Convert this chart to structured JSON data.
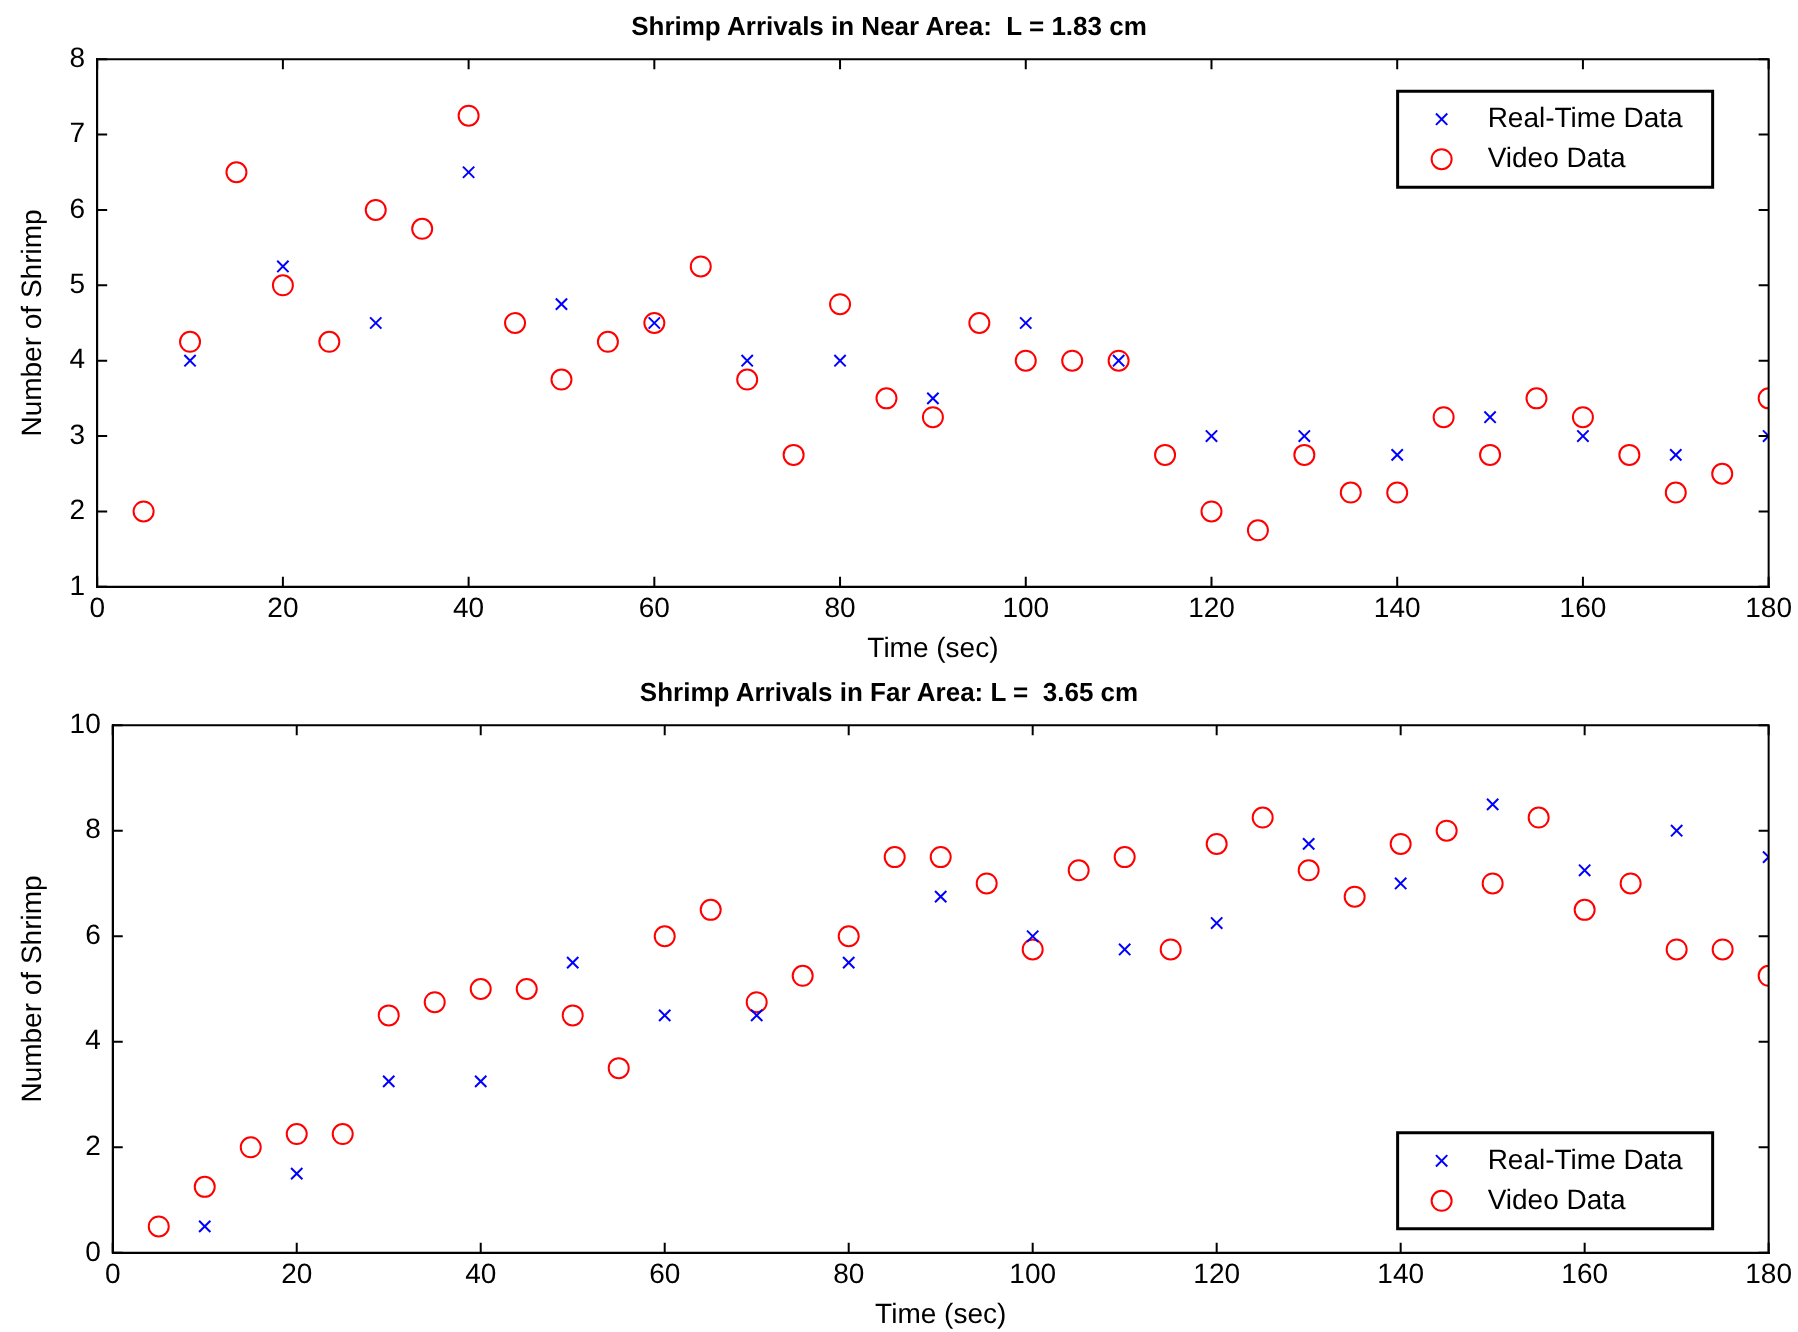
{
  "chart_data": [
    {
      "type": "scatter",
      "title": "Shrimp Arrivals in Near Area:  L = 1.83 cm",
      "xlabel": "Time (sec)",
      "ylabel": "Number of Shrimp",
      "xlim": [
        0,
        180
      ],
      "xticks": [
        0,
        20,
        40,
        60,
        80,
        100,
        120,
        140,
        160,
        180
      ],
      "ylim": [
        1,
        8
      ],
      "yticks": [
        1,
        2,
        3,
        4,
        5,
        6,
        7,
        8
      ],
      "grid": false,
      "legend": "top right",
      "series": [
        {
          "name": "Real-Time Data",
          "color": "#0000ff",
          "marker": "cross",
          "x": [
            10,
            20,
            30,
            40,
            50,
            60,
            70,
            80,
            90,
            100,
            110,
            120,
            130,
            140,
            150,
            160,
            170,
            180
          ],
          "values": [
            4,
            5.25,
            4.5,
            6.5,
            4.75,
            4.5,
            4,
            4,
            3.5,
            4.5,
            4,
            3,
            3,
            2.75,
            3.25,
            3,
            2.75,
            3
          ]
        },
        {
          "name": "Video Data",
          "color": "#ff0000",
          "marker": "circle",
          "x": [
            5,
            10,
            15,
            20,
            25,
            30,
            35,
            40,
            45,
            50,
            55,
            60,
            65,
            70,
            75,
            80,
            85,
            90,
            95,
            100,
            105,
            110,
            115,
            120,
            125,
            130,
            135,
            140,
            145,
            150,
            155,
            160,
            165,
            170,
            175,
            180
          ],
          "values": [
            2,
            4.25,
            6.5,
            5,
            4.25,
            6,
            5.75,
            7.25,
            4.5,
            3.75,
            4.25,
            4.5,
            5.25,
            3.75,
            2.75,
            4.75,
            3.5,
            3.25,
            4.5,
            4,
            4,
            4,
            2.75,
            2,
            1.75,
            2.75,
            2.25,
            2.25,
            3.25,
            2.75,
            3.5,
            3.25,
            2.75,
            2.25,
            2.5,
            3.5
          ]
        }
      ]
    },
    {
      "type": "scatter",
      "title": "Shrimp Arrivals in Far Area: L =  3.65 cm",
      "xlabel": "Time (sec)",
      "ylabel": "Number of Shrimp",
      "xlim": [
        0,
        180
      ],
      "xticks": [
        0,
        20,
        40,
        60,
        80,
        100,
        120,
        140,
        160,
        180
      ],
      "ylim": [
        0,
        10
      ],
      "yticks": [
        0,
        2,
        4,
        6,
        8,
        10
      ],
      "grid": false,
      "legend": "bottom right",
      "series": [
        {
          "name": "Real-Time Data",
          "color": "#0000ff",
          "marker": "cross",
          "x": [
            10,
            20,
            30,
            40,
            50,
            60,
            70,
            80,
            90,
            100,
            110,
            120,
            130,
            140,
            150,
            160,
            170,
            180
          ],
          "values": [
            0.5,
            1.5,
            3.25,
            3.25,
            5.5,
            4.5,
            4.5,
            5.5,
            6.75,
            6,
            5.75,
            6.25,
            7.75,
            7,
            8.5,
            7.25,
            8,
            7.5
          ]
        },
        {
          "name": "Video Data",
          "color": "#ff0000",
          "marker": "circle",
          "x": [
            5,
            10,
            15,
            20,
            25,
            30,
            35,
            40,
            45,
            50,
            55,
            60,
            65,
            70,
            75,
            80,
            85,
            90,
            95,
            100,
            105,
            110,
            115,
            120,
            125,
            130,
            135,
            140,
            145,
            150,
            155,
            160,
            165,
            170,
            175,
            180
          ],
          "values": [
            0.5,
            1.25,
            2,
            2.25,
            2.25,
            4.5,
            4.75,
            5,
            5,
            4.5,
            3.5,
            6,
            6.5,
            4.75,
            5.25,
            6,
            7.5,
            7.5,
            7,
            5.75,
            7.25,
            7.5,
            5.75,
            7.75,
            8.25,
            7.25,
            6.75,
            7.75,
            8,
            7,
            8.25,
            6.5,
            7,
            5.75,
            5.75,
            5.25
          ]
        }
      ]
    }
  ]
}
